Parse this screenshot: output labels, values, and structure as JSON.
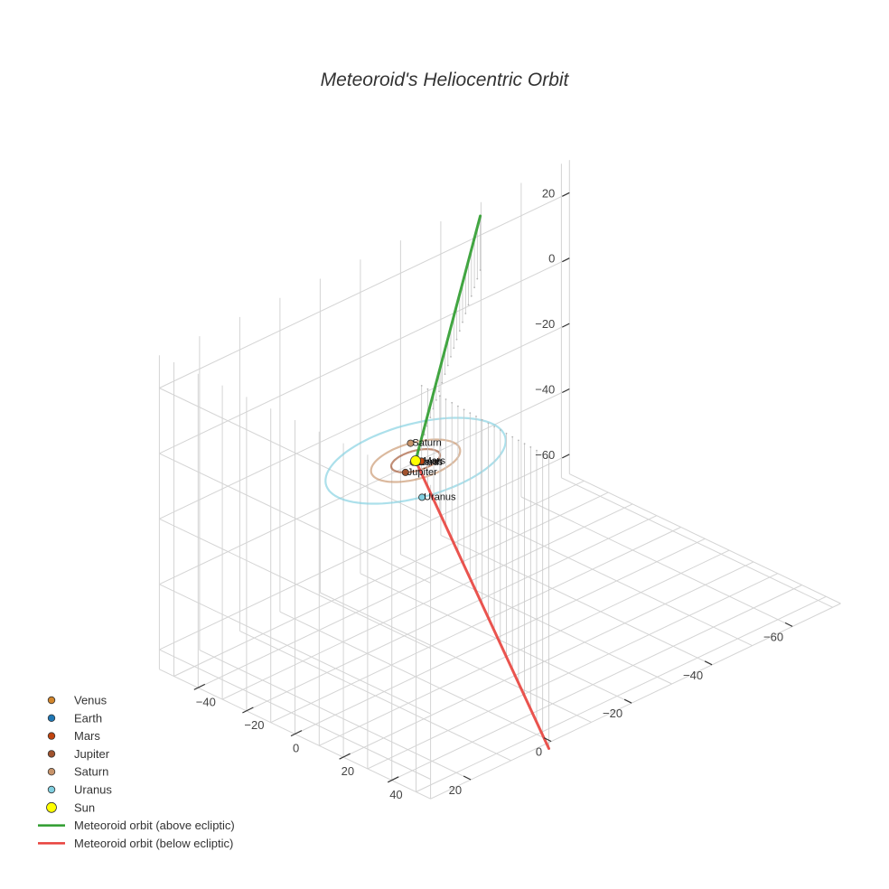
{
  "chart_data": {
    "type": "scatter3d",
    "title": "Meteoroid's Heliocentric Orbit",
    "axes": {
      "x": {
        "ticks": [
          -60,
          -40,
          -20,
          0,
          20
        ]
      },
      "y": {
        "ticks": [
          -40,
          -20,
          0,
          20,
          40
        ]
      },
      "z": {
        "ticks": [
          -60,
          -40,
          -20,
          0,
          20
        ]
      }
    },
    "grid": true,
    "legend_position": "bottom-left",
    "planets": [
      {
        "name": "Venus",
        "color": "#d2862b",
        "distance_au": 0.72
      },
      {
        "name": "Earth",
        "color": "#1f77b4",
        "distance_au": 1.0
      },
      {
        "name": "Mars",
        "color": "#c1440e",
        "distance_au": 1.52
      },
      {
        "name": "Jupiter",
        "color": "#a0522d",
        "distance_au": 5.2
      },
      {
        "name": "Saturn",
        "color": "#c8946a",
        "distance_au": 9.5
      },
      {
        "name": "Uranus",
        "color": "#80cfe0",
        "distance_au": 19.2
      }
    ],
    "sun": {
      "name": "Sun",
      "color": "#ffff00"
    },
    "orbit_rings": [
      {
        "radius_au": 5.2,
        "color": "#a0522d"
      },
      {
        "radius_au": 9.5,
        "color": "#c8946a"
      },
      {
        "radius_au": 19.2,
        "color": "#80cfe0"
      }
    ],
    "meteoroid": {
      "above": {
        "name": "Meteoroid orbit (above ecliptic)",
        "color": "#2e9c2e",
        "start": [
          -48,
          -53,
          28
        ],
        "end": [
          0,
          0,
          0
        ]
      },
      "below": {
        "name": "Meteoroid orbit (below ecliptic)",
        "color": "#e8413c",
        "start": [
          0,
          0,
          0
        ],
        "end": [
          3,
          60,
          -65
        ]
      }
    },
    "legend": [
      {
        "label": "Venus",
        "kind": "marker",
        "color": "#d2862b"
      },
      {
        "label": "Earth",
        "kind": "marker",
        "color": "#1f77b4"
      },
      {
        "label": "Mars",
        "kind": "marker",
        "color": "#c1440e"
      },
      {
        "label": "Jupiter",
        "kind": "marker",
        "color": "#a0522d"
      },
      {
        "label": "Saturn",
        "kind": "marker",
        "color": "#c8946a"
      },
      {
        "label": "Uranus",
        "kind": "marker",
        "color": "#80cfe0"
      },
      {
        "label": "Sun",
        "kind": "sun",
        "color": "#ffff00"
      },
      {
        "label": "Meteoroid orbit (above ecliptic)",
        "kind": "line",
        "color": "#2e9c2e"
      },
      {
        "label": "Meteoroid orbit (below ecliptic)",
        "kind": "line",
        "color": "#e8413c"
      }
    ]
  }
}
